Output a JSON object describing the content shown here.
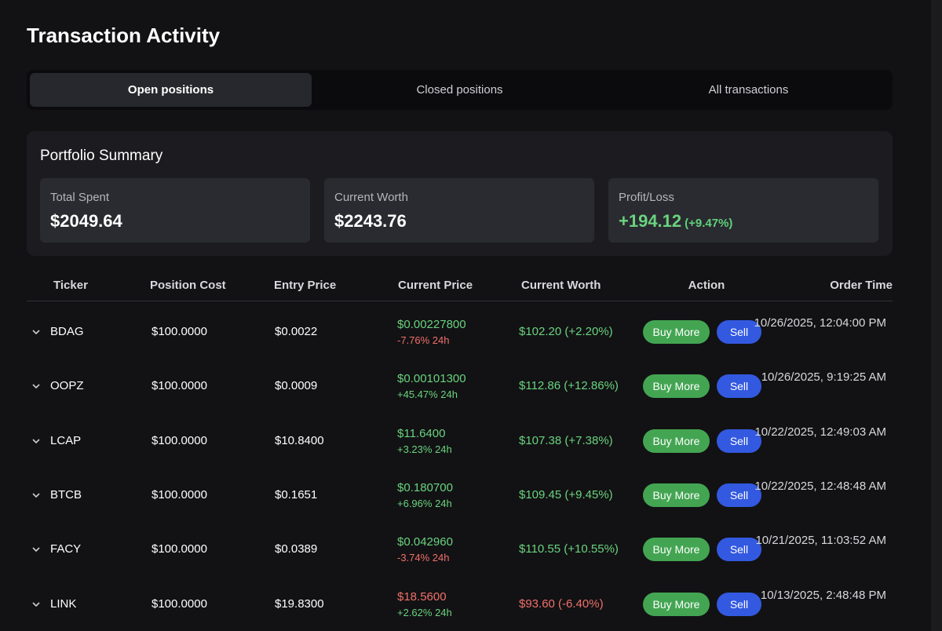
{
  "header": {
    "title": "Transaction Activity"
  },
  "tabs": [
    "Open positions",
    "Closed positions",
    "All transactions"
  ],
  "active_tab": 0,
  "summary": {
    "title": "Portfolio Summary",
    "cards": [
      {
        "label": "Total Spent",
        "value": "$2049.64"
      },
      {
        "label": "Current Worth",
        "value": "$2243.76"
      },
      {
        "label": "Profit/Loss",
        "value": "+194.12",
        "extra": "(+9.47%)"
      }
    ]
  },
  "table": {
    "headers": [
      "Ticker",
      "Position Cost",
      "Entry Price",
      "Current Price",
      "Current Worth",
      "Action",
      "Order Time"
    ],
    "actions": [
      "Buy More",
      "Sell"
    ],
    "rows": [
      {
        "ticker": "BDAG",
        "cost": "$100.0000",
        "entry": "$0.0022",
        "price": "$0.00227800",
        "change": "-7.76% 24h",
        "price_up": true,
        "worth": "$102.20 (+2.20%)",
        "worth_up": true,
        "time": "10/26/2025, 12:04:00 PM"
      },
      {
        "ticker": "OOPZ",
        "cost": "$100.0000",
        "entry": "$0.0009",
        "price": "$0.00101300",
        "change": "+45.47% 24h",
        "price_up": true,
        "worth": "$112.86 (+12.86%)",
        "worth_up": true,
        "time": "10/26/2025, 9:19:25 AM"
      },
      {
        "ticker": "LCAP",
        "cost": "$100.0000",
        "entry": "$10.8400",
        "price": "$11.6400",
        "change": "+3.23% 24h",
        "price_up": true,
        "worth": "$107.38 (+7.38%)",
        "worth_up": true,
        "time": "10/22/2025, 12:49:03 AM"
      },
      {
        "ticker": "BTCB",
        "cost": "$100.0000",
        "entry": "$0.1651",
        "price": "$0.180700",
        "change": "+6.96% 24h",
        "price_up": true,
        "worth": "$109.45 (+9.45%)",
        "worth_up": true,
        "time": "10/22/2025, 12:48:48 AM"
      },
      {
        "ticker": "FACY",
        "cost": "$100.0000",
        "entry": "$0.0389",
        "price": "$0.042960",
        "change": "-3.74% 24h",
        "price_up": true,
        "worth": "$110.55 (+10.55%)",
        "worth_up": true,
        "time": "10/21/2025, 11:03:52 AM"
      },
      {
        "ticker": "LINK",
        "cost": "$100.0000",
        "entry": "$19.8300",
        "price": "$18.5600",
        "change": "+2.62% 24h",
        "price_up": false,
        "worth": "$93.60 (-6.40%)",
        "worth_up": false,
        "time": "10/13/2025, 2:48:48 PM"
      }
    ]
  }
}
